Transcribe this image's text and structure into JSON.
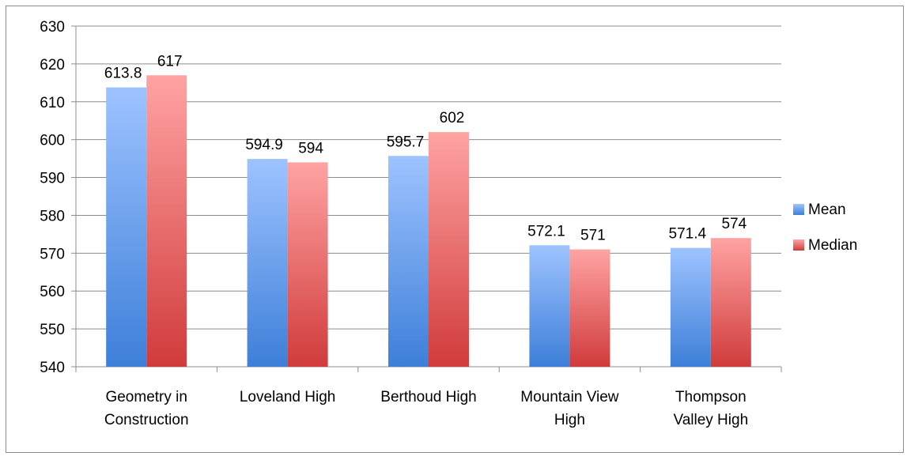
{
  "chart_data": {
    "type": "bar",
    "categories": [
      [
        "Geometry in",
        "Construction"
      ],
      [
        "Loveland High"
      ],
      [
        "Berthoud High"
      ],
      [
        "Mountain View",
        "High"
      ],
      [
        "Thompson",
        "Valley High"
      ]
    ],
    "series": [
      {
        "name": "Mean",
        "values": [
          613.8,
          594.9,
          595.7,
          572.1,
          571.4
        ],
        "labels": [
          "613.8",
          "594.9",
          "595.7",
          "572.1",
          "571.4"
        ],
        "color_top": "#9ec3ff",
        "color_bottom": "#3d7fd9"
      },
      {
        "name": "Median",
        "values": [
          617,
          594,
          602,
          571,
          574
        ],
        "labels": [
          "617",
          "594",
          "602",
          "571",
          "574"
        ],
        "color_top": "#ffa3a3",
        "color_bottom": "#d13b3b"
      }
    ],
    "ylim": [
      540,
      630
    ],
    "yticks": [
      "540",
      "550",
      "560",
      "570",
      "580",
      "590",
      "600",
      "610",
      "620",
      "630"
    ],
    "grid": true,
    "legend_position": "right"
  }
}
